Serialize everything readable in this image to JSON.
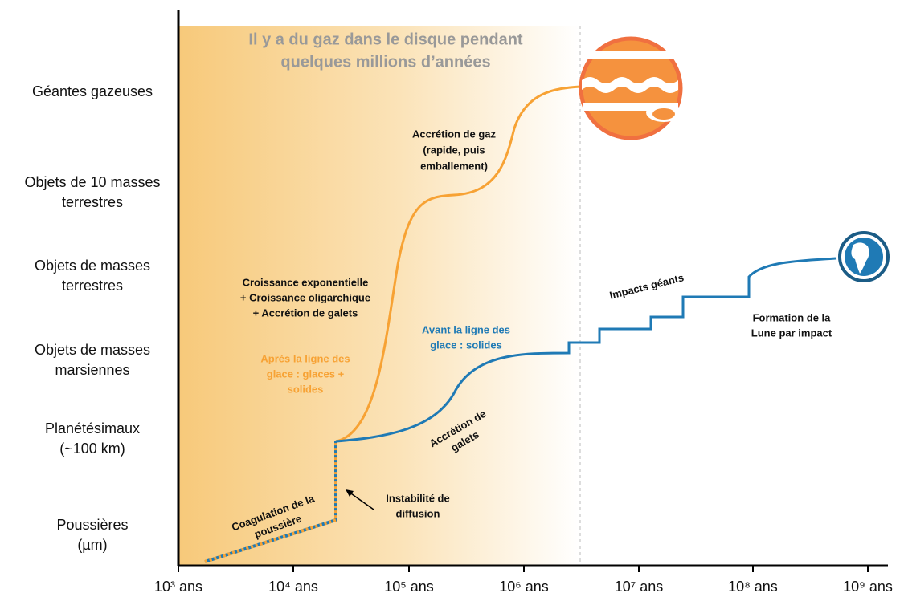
{
  "title": {
    "lines": [
      "Il y a du gaz dans le disque pendant",
      "quelques millions d’années"
    ]
  },
  "y_labels": [
    {
      "lines": [
        "Géantes gazeuses"
      ]
    },
    {
      "lines": [
        "Objets de 10 masses",
        "terrestres"
      ]
    },
    {
      "lines": [
        "Objets de masses",
        "terrestres"
      ]
    },
    {
      "lines": [
        "Objets de masses",
        "marsiennes"
      ]
    },
    {
      "lines": [
        "Planétésimaux",
        "(~100 km)"
      ]
    },
    {
      "lines": [
        "Poussières",
        "(µm)"
      ]
    }
  ],
  "x_labels": [
    "10³ ans",
    "10⁴ ans",
    "10⁵ ans",
    "10⁶ ans",
    "10⁷ ans",
    "10⁸ ans",
    "10⁹ ans"
  ],
  "annotations": {
    "gas_accretion": [
      "Accrétion de gaz",
      "(rapide, puis",
      "emballement)"
    ],
    "growth": [
      "Croissance exponentielle",
      "+ Croissance oligarchique",
      "+ Accrétion de galets"
    ],
    "after_ice": [
      "Après la ligne des",
      "glace : glaces +",
      "solides"
    ],
    "before_ice": [
      "Avant la ligne des",
      "glace : solides"
    ],
    "pebbles": [
      "Accrétion de",
      "galets"
    ],
    "impacts": [
      "Impacts géants"
    ],
    "moon": [
      "Formation de la",
      "Lune par impact"
    ],
    "instability": [
      "Instabilité de",
      "diffusion"
    ],
    "coagulation": [
      "Coagulation de la",
      "poussière"
    ]
  }
}
